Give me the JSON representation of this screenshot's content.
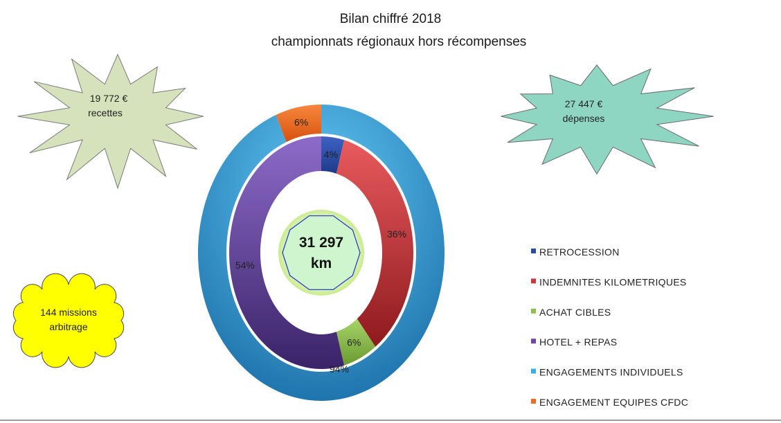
{
  "chart_data": {
    "type": "pie",
    "variant": "double-doughnut",
    "title": "Bilan chiffré 2018",
    "subtitle": "championnats régionaux hors récompenses",
    "center_value": "31 297",
    "center_unit": "km",
    "inner_ring": {
      "slices": [
        {
          "category": "RETROCESSION",
          "value": 4,
          "label": "4%"
        },
        {
          "category": "INDEMNITES KILOMETRIQUES",
          "value": 36,
          "label": "36%"
        },
        {
          "category": "ACHAT CIBLES",
          "value": 6,
          "label": "6%"
        },
        {
          "category": "HOTEL + REPAS",
          "value": 54,
          "label": "54%"
        }
      ]
    },
    "outer_ring": {
      "slices": [
        {
          "category": "ENGAGEMENTS INDIVIDUELS",
          "value": 94,
          "label": "94%"
        },
        {
          "category": "ENGAGEMENT EQUIPES CFDC",
          "value": 6,
          "label": "6%"
        }
      ]
    },
    "legend": {
      "placement": "right",
      "entries": [
        {
          "label": "RETROCESSION",
          "color": "#2a4ca8"
        },
        {
          "label": "INDEMNITES KILOMETRIQUES",
          "color": "#c83a3e"
        },
        {
          "label": "ACHAT CIBLES",
          "color": "#8cc04a"
        },
        {
          "label": "HOTEL + REPAS",
          "color": "#6c47a8"
        },
        {
          "label": "ENGAGEMENTS INDIVIDUELS",
          "color": "#3aaee6"
        },
        {
          "label": "ENGAGEMENT EQUIPES CFDC",
          "color": "#f06a22"
        }
      ]
    },
    "colors": {
      "RETROCESSION": "#2a4ca8",
      "INDEMNITES KILOMETRIQUES": "#d9474b",
      "ACHAT CIBLES": "#8cc04a",
      "HOTEL + REPAS": "#6c47a8",
      "ENGAGEMENTS INDIVIDUELS": "#3aaee6",
      "ENGAGEMENT EQUIPES CFDC": "#f06a22"
    }
  },
  "annotations": {
    "recettes": {
      "line1": "19 772 €",
      "line2": "recettes",
      "color": "#d6e2bb"
    },
    "depenses": {
      "line1": "27 447 €",
      "line2": "dépenses",
      "color": "#8fd6c2"
    },
    "missions": {
      "line1": "144 missions",
      "line2": "arbitrage",
      "color": "#ffff00"
    }
  }
}
